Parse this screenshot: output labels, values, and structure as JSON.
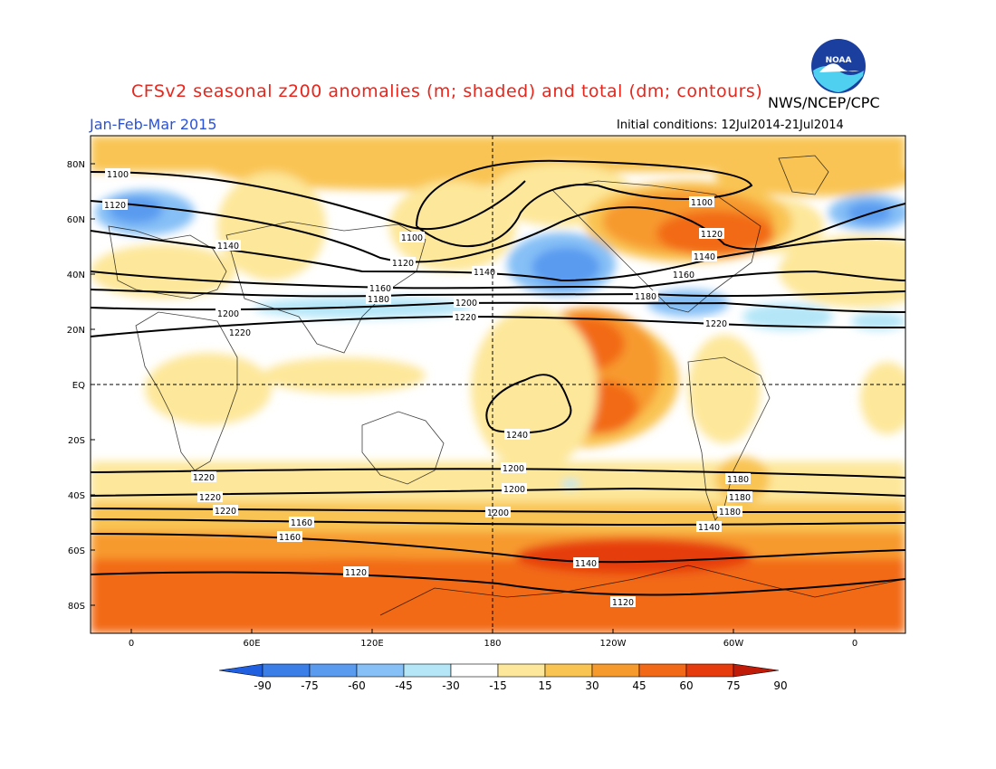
{
  "header": {
    "title": "CFSv2 seasonal z200 anomalies (m; shaded) and total (dm; contours)",
    "season": "Jan-Feb-Mar 2015",
    "agency": "NWS/NCEP/CPC",
    "initial_conditions": "Initial conditions: 12Jul2014-21Jul2014",
    "logo_text": "NOAA"
  },
  "map": {
    "lat_labels": [
      "80N",
      "60N",
      "40N",
      "20N",
      "EQ",
      "20S",
      "40S",
      "60S",
      "80S"
    ],
    "lon_labels": [
      "0",
      "60E",
      "120E",
      "180",
      "120W",
      "60W",
      "0"
    ]
  },
  "contours": [
    {
      "label": "1100"
    },
    {
      "label": "1100"
    },
    {
      "label": "1100"
    },
    {
      "label": "1120"
    },
    {
      "label": "1120"
    },
    {
      "label": "1120"
    },
    {
      "label": "1140"
    },
    {
      "label": "1140"
    },
    {
      "label": "1140"
    },
    {
      "label": "1160"
    },
    {
      "label": "1160"
    },
    {
      "label": "1180"
    },
    {
      "label": "1180"
    },
    {
      "label": "1200"
    },
    {
      "label": "1200"
    },
    {
      "label": "1220"
    },
    {
      "label": "1220"
    },
    {
      "label": "1220"
    },
    {
      "label": "1240"
    },
    {
      "label": "1220"
    },
    {
      "label": "1200"
    },
    {
      "label": "1180"
    },
    {
      "label": "1220"
    },
    {
      "label": "1200"
    },
    {
      "label": "1180"
    },
    {
      "label": "1220"
    },
    {
      "label": "1200"
    },
    {
      "label": "1180"
    },
    {
      "label": "1160"
    },
    {
      "label": "1140"
    },
    {
      "label": "1160"
    },
    {
      "label": "1140"
    },
    {
      "label": "1120"
    },
    {
      "label": "1120"
    }
  ],
  "colorbar": {
    "ticks": [
      "-90",
      "-75",
      "-60",
      "-45",
      "-30",
      "-15",
      "15",
      "30",
      "45",
      "60",
      "75",
      "90"
    ],
    "colors": [
      "#1f5fe0",
      "#3b7ee8",
      "#5a9bf0",
      "#86c0f6",
      "#b4e6f8",
      "#ffffff",
      "#fde79a",
      "#f9c452",
      "#f79a2e",
      "#f26a17",
      "#e63c0d",
      "#c01a08"
    ]
  }
}
